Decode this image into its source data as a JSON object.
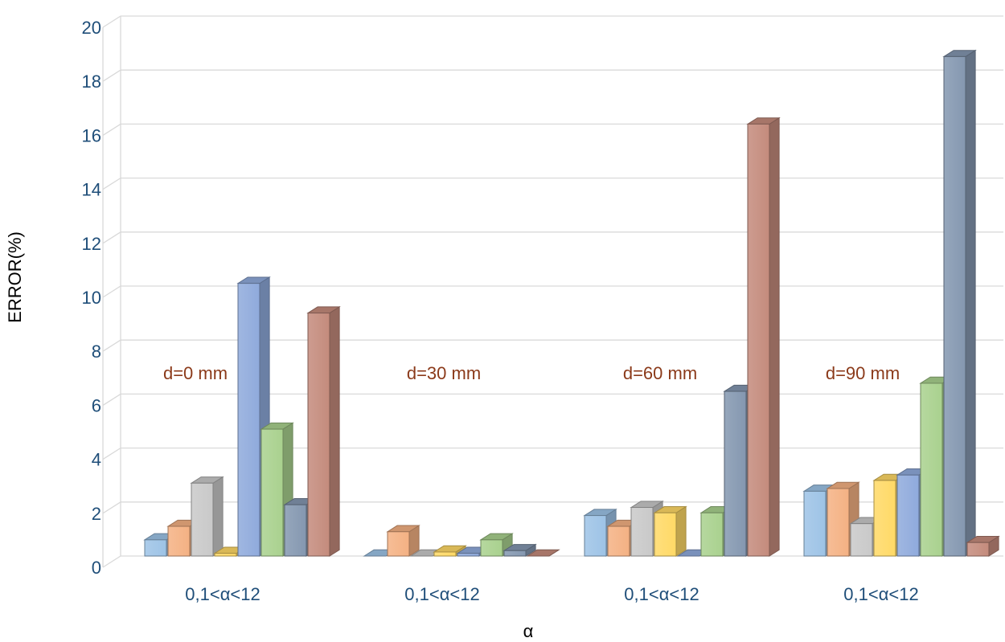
{
  "chart_data": {
    "type": "bar",
    "style": "3d-clustered-column",
    "xlabel": "α",
    "ylabel": "ERROR(%)",
    "ylim": [
      0,
      20
    ],
    "yticks": [
      0,
      2,
      4,
      6,
      8,
      10,
      12,
      14,
      16,
      18,
      20
    ],
    "grid": true,
    "categories": [
      "0,1<α<12",
      "0,1<α<12",
      "0,1<α<12",
      "0,1<α<12"
    ],
    "annotations": [
      "d=0 mm",
      "d=30 mm",
      "d=60 mm",
      "d=90 mm"
    ],
    "series": [
      {
        "color": "#9dc3e6",
        "values": [
          0.6,
          0.0,
          1.5,
          2.4
        ]
      },
      {
        "color": "#f4b183",
        "values": [
          1.1,
          0.9,
          1.1,
          2.5
        ]
      },
      {
        "color": "#c9c9c9",
        "values": [
          2.7,
          0.0,
          1.8,
          1.2
        ]
      },
      {
        "color": "#ffd966",
        "values": [
          0.1,
          0.15,
          1.6,
          2.8
        ]
      },
      {
        "color": "#8faadc",
        "values": [
          10.1,
          0.1,
          0.0,
          3.0
        ]
      },
      {
        "color": "#a9d18e",
        "values": [
          4.7,
          0.6,
          1.6,
          6.4
        ]
      },
      {
        "color": "#8497b0",
        "values": [
          1.9,
          0.2,
          6.1,
          18.5
        ]
      },
      {
        "color": "#c48b7c",
        "values": [
          9.0,
          0.0,
          16.0,
          0.5
        ]
      }
    ]
  }
}
